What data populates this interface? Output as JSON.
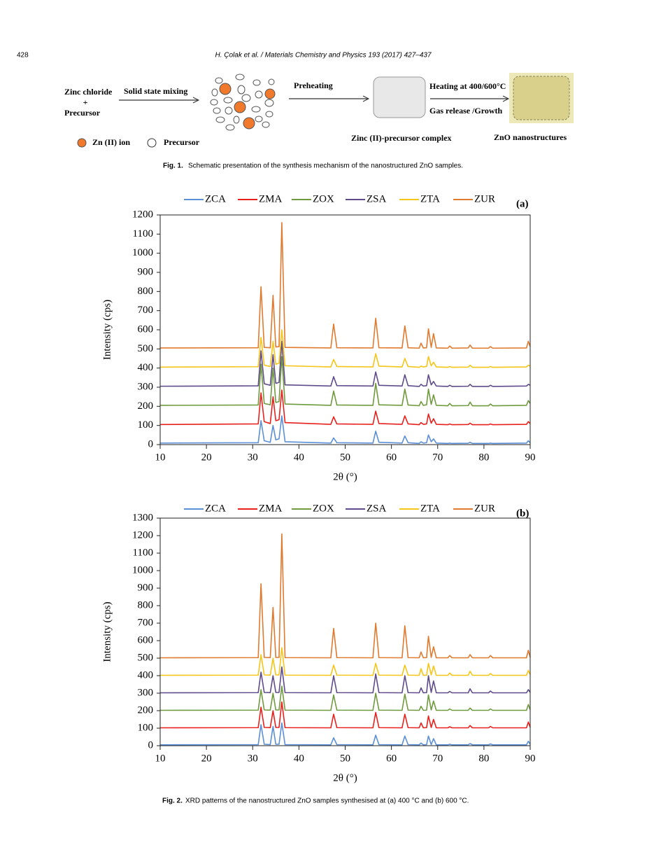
{
  "header": {
    "page": "428",
    "citation": "H. Çolak et al. / Materials Chemistry and Physics 193 (2017) 427–437"
  },
  "figure1": {
    "reactant_1": "Zinc chloride",
    "plus": "+",
    "reactant_2": "Precursor",
    "step_1": "Solid state mixing",
    "step_2": "Preheating",
    "step_3a": "Heating at 400/600°C",
    "step_3b": "Gas release /Growth",
    "intermediate": "Zinc (II)-precursor complex",
    "product": "ZnO nanostructures",
    "legend_ion": "Zn (II) ion",
    "legend_precursor": "Precursor",
    "caption_label": "Fig. 1.",
    "caption": "Schematic presentation of the synthesis mechanism of the nanostructured ZnO samples."
  },
  "figure2": {
    "caption_label": "Fig. 2.",
    "caption": "XRD patterns of the nanostructured ZnO samples synthesised at (a) 400 °C and (b) 600 °C."
  },
  "chart_data": [
    {
      "type": "line",
      "title": "(a)",
      "x_label": "2θ (°)",
      "y_label": "Intensity (cps)",
      "x": [
        10,
        31.2,
        31.8,
        32.5,
        33.8,
        34.4,
        35.0,
        35.7,
        36.3,
        37.0,
        46.9,
        47.5,
        48.2,
        56.0,
        56.6,
        57.3,
        62.3,
        62.9,
        63.6,
        66.0,
        66.4,
        66.9,
        67.6,
        68.0,
        68.6,
        69.1,
        69.7,
        72.2,
        72.6,
        73.1,
        76.6,
        77.0,
        77.5,
        81.0,
        81.4,
        81.9,
        89.2,
        89.6,
        90
      ],
      "xlim": [
        10,
        90
      ],
      "xticks": [
        10,
        20,
        30,
        40,
        50,
        60,
        70,
        80,
        90
      ],
      "ylim": [
        0,
        1200
      ],
      "yticks": [
        0,
        100,
        200,
        300,
        400,
        500,
        600,
        700,
        800,
        900,
        1000,
        1100,
        1200
      ],
      "series": [
        {
          "name": "ZCA",
          "color": "#5b8fd6",
          "values": [
            8,
            10,
            125,
            20,
            12,
            100,
            25,
            30,
            150,
            15,
            8,
            35,
            10,
            8,
            70,
            12,
            8,
            45,
            10,
            6,
            15,
            8,
            10,
            50,
            15,
            30,
            8,
            6,
            8,
            6,
            7,
            12,
            6,
            6,
            8,
            6,
            8,
            20,
            10
          ]
        },
        {
          "name": "ZMA",
          "color": "#e8201c",
          "values": [
            105,
            108,
            270,
            120,
            110,
            250,
            125,
            130,
            285,
            115,
            106,
            145,
            108,
            106,
            175,
            110,
            106,
            150,
            108,
            104,
            115,
            106,
            108,
            160,
            112,
            135,
            106,
            104,
            108,
            104,
            105,
            112,
            104,
            104,
            108,
            104,
            106,
            120,
            110
          ]
        },
        {
          "name": "ZOX",
          "color": "#6f9a3e",
          "values": [
            205,
            207,
            420,
            215,
            208,
            400,
            220,
            225,
            460,
            212,
            205,
            280,
            207,
            205,
            320,
            208,
            205,
            290,
            207,
            203,
            225,
            205,
            208,
            290,
            210,
            260,
            205,
            203,
            215,
            203,
            204,
            222,
            203,
            203,
            212,
            203,
            205,
            230,
            215
          ]
        },
        {
          "name": "ZSA",
          "color": "#5f4b8b",
          "values": [
            305,
            307,
            490,
            318,
            310,
            470,
            320,
            325,
            540,
            312,
            306,
            355,
            308,
            306,
            380,
            310,
            306,
            365,
            308,
            304,
            315,
            306,
            308,
            365,
            312,
            330,
            306,
            304,
            310,
            304,
            305,
            315,
            304,
            304,
            310,
            304,
            306,
            315,
            310
          ]
        },
        {
          "name": "ZTA",
          "color": "#f5c518",
          "values": [
            405,
            407,
            560,
            415,
            408,
            540,
            420,
            425,
            600,
            412,
            406,
            445,
            408,
            406,
            475,
            410,
            406,
            450,
            408,
            404,
            410,
            406,
            408,
            460,
            412,
            430,
            406,
            404,
            408,
            404,
            405,
            415,
            404,
            404,
            408,
            404,
            406,
            415,
            410
          ]
        },
        {
          "name": "ZUR",
          "color": "#e07a2e",
          "values": [
            505,
            506,
            825,
            508,
            506,
            780,
            510,
            512,
            1160,
            508,
            505,
            630,
            506,
            505,
            660,
            506,
            505,
            620,
            506,
            504,
            530,
            505,
            506,
            605,
            508,
            580,
            505,
            504,
            515,
            504,
            505,
            520,
            504,
            504,
            512,
            504,
            505,
            540,
            512
          ]
        }
      ]
    },
    {
      "type": "line",
      "title": "(b)",
      "x_label": "2θ (°)",
      "y_label": "Intensity (cps)",
      "x": [
        10,
        31.2,
        31.8,
        32.5,
        33.8,
        34.4,
        35.0,
        35.7,
        36.3,
        37.0,
        46.9,
        47.5,
        48.2,
        56.0,
        56.6,
        57.3,
        62.3,
        62.9,
        63.6,
        66.0,
        66.4,
        66.9,
        67.6,
        68.0,
        68.6,
        69.1,
        69.7,
        72.2,
        72.6,
        73.1,
        76.6,
        77.0,
        77.5,
        81.0,
        81.4,
        81.9,
        89.2,
        89.6,
        90
      ],
      "xlim": [
        10,
        90
      ],
      "xticks": [
        10,
        20,
        30,
        40,
        50,
        60,
        70,
        80,
        90
      ],
      "ylim": [
        0,
        1300
      ],
      "yticks": [
        0,
        100,
        200,
        300,
        400,
        500,
        600,
        700,
        800,
        900,
        1000,
        1100,
        1200,
        1300
      ],
      "series": [
        {
          "name": "ZCA",
          "color": "#5b8fd6",
          "values": [
            5,
            6,
            120,
            8,
            6,
            110,
            8,
            8,
            130,
            6,
            5,
            45,
            6,
            5,
            60,
            6,
            5,
            55,
            6,
            5,
            15,
            5,
            6,
            55,
            6,
            40,
            5,
            5,
            8,
            5,
            5,
            12,
            5,
            5,
            10,
            5,
            5,
            25,
            8
          ]
        },
        {
          "name": "ZMA",
          "color": "#e8201c",
          "values": [
            102,
            103,
            220,
            104,
            103,
            200,
            104,
            104,
            250,
            103,
            102,
            180,
            103,
            102,
            190,
            103,
            102,
            180,
            103,
            102,
            130,
            102,
            103,
            170,
            104,
            150,
            102,
            102,
            108,
            102,
            102,
            115,
            102,
            102,
            110,
            102,
            102,
            135,
            105
          ]
        },
        {
          "name": "ZOX",
          "color": "#6f9a3e",
          "values": [
            202,
            203,
            320,
            204,
            203,
            300,
            204,
            204,
            340,
            203,
            202,
            290,
            203,
            202,
            300,
            203,
            202,
            295,
            203,
            202,
            225,
            202,
            203,
            290,
            204,
            255,
            202,
            202,
            210,
            202,
            202,
            215,
            202,
            202,
            210,
            202,
            202,
            235,
            205
          ]
        },
        {
          "name": "ZSA",
          "color": "#5f4b8b",
          "values": [
            302,
            303,
            420,
            304,
            303,
            400,
            304,
            304,
            450,
            303,
            302,
            400,
            303,
            302,
            410,
            303,
            302,
            400,
            303,
            302,
            330,
            302,
            303,
            400,
            304,
            370,
            302,
            302,
            310,
            302,
            302,
            325,
            302,
            302,
            312,
            302,
            302,
            320,
            305
          ]
        },
        {
          "name": "ZTA",
          "color": "#f5c518",
          "values": [
            402,
            403,
            520,
            404,
            403,
            500,
            404,
            404,
            560,
            403,
            402,
            460,
            403,
            402,
            470,
            403,
            402,
            460,
            403,
            402,
            440,
            402,
            403,
            470,
            404,
            455,
            402,
            402,
            415,
            402,
            402,
            425,
            402,
            402,
            412,
            402,
            402,
            430,
            405
          ]
        },
        {
          "name": "ZUR",
          "color": "#e07a2e",
          "values": [
            502,
            503,
            925,
            504,
            503,
            790,
            504,
            504,
            1210,
            503,
            502,
            670,
            503,
            502,
            700,
            503,
            502,
            685,
            503,
            502,
            535,
            502,
            503,
            625,
            504,
            565,
            502,
            502,
            515,
            502,
            502,
            520,
            502,
            502,
            515,
            502,
            502,
            545,
            505
          ]
        }
      ]
    }
  ]
}
